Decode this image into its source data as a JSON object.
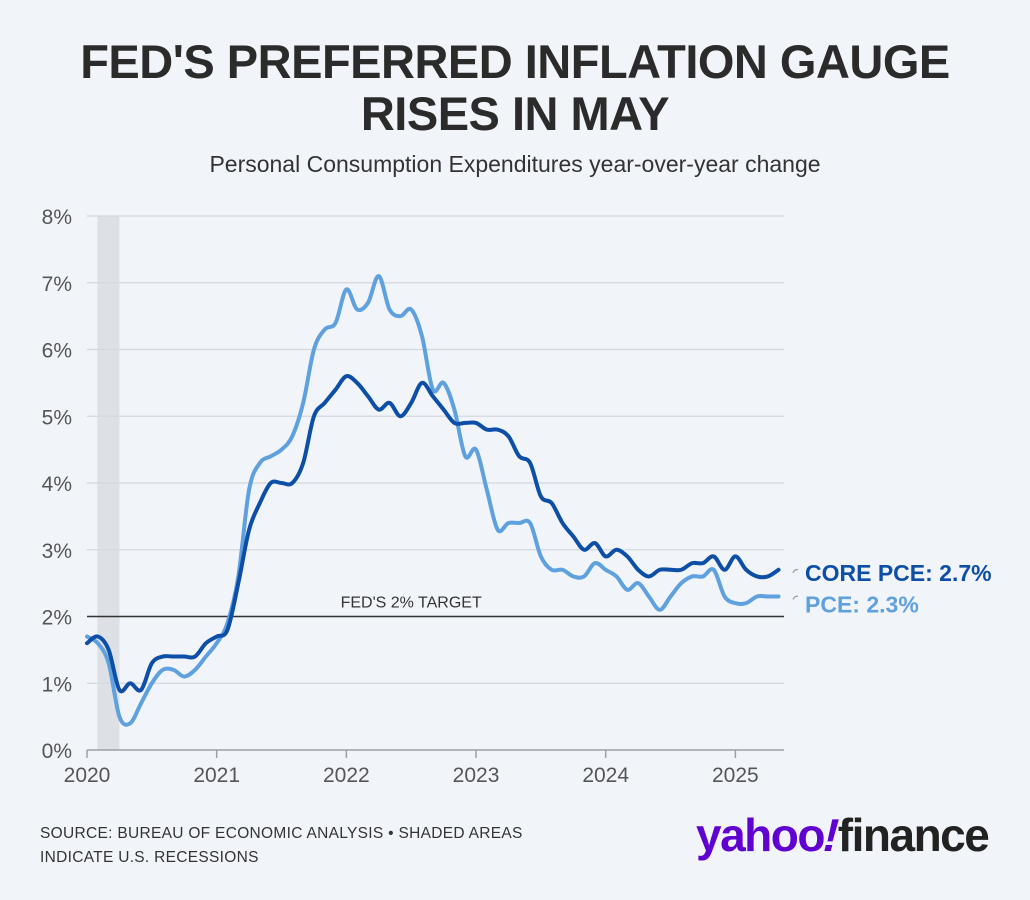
{
  "header": {
    "title_line1": "FED'S PREFERRED INFLATION GAUGE",
    "title_line2": "RISES IN MAY",
    "subtitle": "Personal Consumption Expenditures year-over-year change"
  },
  "footer": {
    "source_line1": "SOURCE: BUREAU OF ECONOMIC ANALYSIS • SHADED AREAS",
    "source_line2": "INDICATE U.S. RECESSIONS",
    "logo_part1": "yahoo",
    "logo_bang": "!",
    "logo_part2": "finance"
  },
  "colors": {
    "core_pce": "#0d4ea6",
    "pce": "#5fa0df",
    "grid": "#d3d8de",
    "target": "#333333",
    "recession": "#dde1e6",
    "axis_text": "#555555",
    "background": "#f1f5fa"
  },
  "chart_data": {
    "type": "line",
    "x_label_ticks": [
      "2020",
      "2021",
      "2022",
      "2023",
      "2024",
      "2025"
    ],
    "y_tick_labels": [
      "0%",
      "1%",
      "2%",
      "3%",
      "4%",
      "5%",
      "6%",
      "7%",
      "8%"
    ],
    "ylim": [
      0,
      8
    ],
    "xlim": [
      2020.0,
      2025.375
    ],
    "grid": true,
    "reference_line": {
      "value": 2,
      "label": "FED'S 2% TARGET"
    },
    "recession": {
      "start": 2020.08,
      "end": 2020.25
    },
    "series": [
      {
        "name": "CORE PCE",
        "end_label": "CORE PCE: 2.7%",
        "x": [
          2020.0,
          2020.083,
          2020.167,
          2020.25,
          2020.333,
          2020.417,
          2020.5,
          2020.583,
          2020.667,
          2020.75,
          2020.833,
          2020.917,
          2021.0,
          2021.083,
          2021.167,
          2021.25,
          2021.333,
          2021.417,
          2021.5,
          2021.583,
          2021.667,
          2021.75,
          2021.833,
          2021.917,
          2022.0,
          2022.083,
          2022.167,
          2022.25,
          2022.333,
          2022.417,
          2022.5,
          2022.583,
          2022.667,
          2022.75,
          2022.833,
          2022.917,
          2023.0,
          2023.083,
          2023.167,
          2023.25,
          2023.333,
          2023.417,
          2023.5,
          2023.583,
          2023.667,
          2023.75,
          2023.833,
          2023.917,
          2024.0,
          2024.083,
          2024.167,
          2024.25,
          2024.333,
          2024.417,
          2024.5,
          2024.583,
          2024.667,
          2024.75,
          2024.833,
          2024.917,
          2025.0,
          2025.083,
          2025.167,
          2025.25,
          2025.333
        ],
        "values": [
          1.6,
          1.7,
          1.5,
          0.9,
          1.0,
          0.9,
          1.3,
          1.4,
          1.4,
          1.4,
          1.4,
          1.6,
          1.7,
          1.8,
          2.5,
          3.3,
          3.7,
          4.0,
          4.0,
          4.0,
          4.3,
          5.0,
          5.2,
          5.4,
          5.6,
          5.5,
          5.3,
          5.1,
          5.2,
          5.0,
          5.2,
          5.5,
          5.3,
          5.1,
          4.9,
          4.9,
          4.9,
          4.8,
          4.8,
          4.7,
          4.4,
          4.3,
          3.8,
          3.7,
          3.4,
          3.2,
          3.0,
          3.1,
          2.9,
          3.0,
          2.9,
          2.7,
          2.6,
          2.7,
          2.7,
          2.7,
          2.8,
          2.8,
          2.9,
          2.7,
          2.9,
          2.7,
          2.6,
          2.6,
          2.7
        ]
      },
      {
        "name": "PCE",
        "end_label": "PCE: 2.3%",
        "x": [
          2020.0,
          2020.083,
          2020.167,
          2020.25,
          2020.333,
          2020.417,
          2020.5,
          2020.583,
          2020.667,
          2020.75,
          2020.833,
          2020.917,
          2021.0,
          2021.083,
          2021.167,
          2021.25,
          2021.333,
          2021.417,
          2021.5,
          2021.583,
          2021.667,
          2021.75,
          2021.833,
          2021.917,
          2022.0,
          2022.083,
          2022.167,
          2022.25,
          2022.333,
          2022.417,
          2022.5,
          2022.583,
          2022.667,
          2022.75,
          2022.833,
          2022.917,
          2023.0,
          2023.083,
          2023.167,
          2023.25,
          2023.333,
          2023.417,
          2023.5,
          2023.583,
          2023.667,
          2023.75,
          2023.833,
          2023.917,
          2024.0,
          2024.083,
          2024.167,
          2024.25,
          2024.333,
          2024.417,
          2024.5,
          2024.583,
          2024.667,
          2024.75,
          2024.833,
          2024.917,
          2025.0,
          2025.083,
          2025.167,
          2025.25,
          2025.333
        ],
        "values": [
          1.7,
          1.6,
          1.3,
          0.5,
          0.4,
          0.7,
          1.0,
          1.2,
          1.2,
          1.1,
          1.2,
          1.4,
          1.6,
          1.9,
          2.6,
          3.9,
          4.3,
          4.4,
          4.5,
          4.7,
          5.2,
          6.0,
          6.3,
          6.4,
          6.9,
          6.6,
          6.7,
          7.1,
          6.6,
          6.5,
          6.6,
          6.2,
          5.4,
          5.5,
          5.1,
          4.4,
          4.5,
          3.9,
          3.3,
          3.4,
          3.4,
          3.4,
          2.9,
          2.7,
          2.7,
          2.6,
          2.6,
          2.8,
          2.7,
          2.6,
          2.4,
          2.5,
          2.3,
          2.1,
          2.3,
          2.5,
          2.6,
          2.6,
          2.7,
          2.3,
          2.2,
          2.2,
          2.3,
          2.3,
          2.3
        ]
      }
    ]
  }
}
